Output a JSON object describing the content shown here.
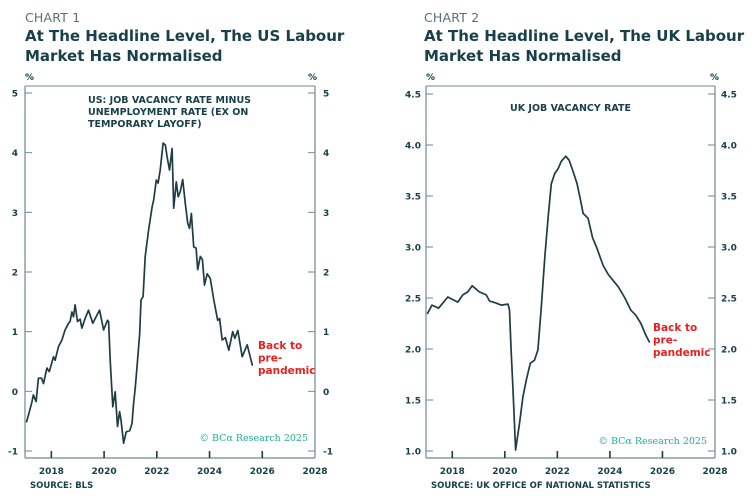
{
  "chart_data": [
    {
      "type": "line",
      "kicker": "CHART 1",
      "title_lines": [
        "At The Headline Level, The US Labour",
        "Market Has Normalised"
      ],
      "series_title_lines": [
        "US: JOB VACANCY RATE MINUS",
        "UNEMPLOYMENT RATE (EX ON",
        "TEMPORARY LAYOFF)"
      ],
      "ylabel": "%",
      "ylabel_right": "%",
      "ylim": [
        -1,
        5
      ],
      "yticks": [
        -1,
        0,
        1,
        2,
        3,
        4,
        5
      ],
      "ytick_labels": [
        "-1",
        "0",
        "1",
        "2",
        "3",
        "4",
        "5"
      ],
      "xlim": [
        2017,
        2028
      ],
      "xticks": [
        2018,
        2020,
        2022,
        2024,
        2026,
        2028
      ],
      "xtick_labels": [
        "2018",
        "2020",
        "2022",
        "2024",
        "2026",
        "2028"
      ],
      "grid": false,
      "annotation_lines": [
        "Back to",
        "pre-",
        "pandemic"
      ],
      "copyright": "© BCα Research 2025",
      "source": "SOURCE: BLS",
      "line_color": "#1e3c42",
      "annotation_color": "#e8201f",
      "series": [
        {
          "name": "US: Job vacancy rate minus unemployment rate (ex on temporary layoff)",
          "x": [
            2017.06,
            2017.25,
            2017.32,
            2017.42,
            2017.51,
            2017.63,
            2017.7,
            2017.83,
            2017.92,
            2018.08,
            2018.14,
            2018.27,
            2018.4,
            2018.52,
            2018.65,
            2018.71,
            2018.78,
            2018.84,
            2018.9,
            2018.99,
            2019.09,
            2019.16,
            2019.28,
            2019.41,
            2019.57,
            2019.73,
            2019.83,
            2019.98,
            2020.13,
            2020.17,
            2020.23,
            2020.33,
            2020.42,
            2020.51,
            2020.59,
            2020.64,
            2020.74,
            2020.84,
            2020.97,
            2021.06,
            2021.12,
            2021.18,
            2021.25,
            2021.35,
            2021.4,
            2021.48,
            2021.56,
            2021.69,
            2021.82,
            2021.88,
            2021.98,
            2022.05,
            2022.13,
            2022.24,
            2022.32,
            2022.39,
            2022.48,
            2022.58,
            2022.64,
            2022.74,
            2022.81,
            2022.89,
            2022.98,
            2023.08,
            2023.17,
            2023.24,
            2023.31,
            2023.4,
            2023.49,
            2023.55,
            2023.65,
            2023.73,
            2023.81,
            2023.91,
            2024.03,
            2024.16,
            2024.31,
            2024.38,
            2024.48,
            2024.6,
            2024.73,
            2024.88,
            2024.96,
            2025.07,
            2025.24,
            2025.43,
            2025.62
          ],
          "values": [
            -0.51,
            -0.2,
            -0.06,
            -0.17,
            0.22,
            0.22,
            0.13,
            0.39,
            0.33,
            0.58,
            0.52,
            0.75,
            0.86,
            1.03,
            1.14,
            1.17,
            1.33,
            1.25,
            1.45,
            1.17,
            1.21,
            1.06,
            1.22,
            1.36,
            1.14,
            1.28,
            1.36,
            1.03,
            1.19,
            1.17,
            0.52,
            -0.26,
            -0.01,
            -0.59,
            -0.34,
            -0.48,
            -0.87,
            -0.68,
            -0.66,
            -0.54,
            -0.2,
            0.05,
            0.41,
            0.97,
            1.53,
            1.59,
            2.26,
            2.7,
            3.09,
            3.21,
            3.54,
            3.49,
            3.71,
            4.16,
            4.13,
            3.93,
            3.71,
            4.07,
            3.07,
            3.51,
            3.26,
            3.35,
            3.55,
            3.15,
            2.82,
            2.73,
            2.98,
            2.42,
            2.4,
            2.04,
            2.26,
            2.21,
            1.78,
            1.97,
            1.89,
            1.53,
            1.19,
            1.22,
            0.86,
            0.9,
            0.69,
            1.0,
            0.89,
            1.02,
            0.58,
            0.78,
            0.44
          ]
        }
      ]
    },
    {
      "type": "line",
      "kicker": "CHART 2",
      "title_lines": [
        "At The Headline Level, The UK Labour",
        "Market Has Normalised"
      ],
      "series_title_lines": [
        "UK JOB VACANCY RATE"
      ],
      "ylabel": "%",
      "ylabel_right": "%",
      "ylim": [
        1.0,
        4.5
      ],
      "yticks": [
        1.0,
        1.5,
        2.0,
        2.5,
        3.0,
        3.5,
        4.0,
        4.5
      ],
      "ytick_labels": [
        "1.0",
        "1.5",
        "2.0",
        "2.5",
        "3.0",
        "3.5",
        "4.0",
        "4.5"
      ],
      "xlim": [
        2017,
        2028
      ],
      "xticks": [
        2018,
        2020,
        2022,
        2024,
        2026,
        2028
      ],
      "xtick_labels": [
        "2018",
        "2020",
        "2022",
        "2024",
        "2026",
        "2028"
      ],
      "grid": false,
      "annotation_lines": [
        "Back to",
        "pre-",
        "pandemic"
      ],
      "copyright": "© BCα Research 2025",
      "source": "SOURCE: UK OFFICE OF NATIONAL STATISTICS",
      "line_color": "#1e3c42",
      "annotation_color": "#e8201f",
      "series": [
        {
          "name": "UK job vacancy rate",
          "x": [
            2017.06,
            2017.23,
            2017.48,
            2017.83,
            2018.21,
            2018.4,
            2018.59,
            2018.76,
            2019.03,
            2019.29,
            2019.42,
            2019.67,
            2019.86,
            2020.12,
            2020.18,
            2020.24,
            2020.31,
            2020.41,
            2020.56,
            2020.69,
            2020.82,
            2020.97,
            2021.13,
            2021.26,
            2021.39,
            2021.52,
            2021.65,
            2021.77,
            2021.9,
            2022.03,
            2022.15,
            2022.32,
            2022.45,
            2022.6,
            2022.75,
            2022.88,
            2022.98,
            2023.17,
            2023.34,
            2023.49,
            2023.74,
            2023.94,
            2024.13,
            2024.32,
            2024.57,
            2024.8,
            2024.99,
            2025.18,
            2025.36,
            2025.5
          ],
          "values": [
            2.35,
            2.43,
            2.4,
            2.51,
            2.46,
            2.53,
            2.56,
            2.62,
            2.56,
            2.53,
            2.47,
            2.45,
            2.43,
            2.44,
            2.38,
            1.99,
            1.6,
            1.01,
            1.27,
            1.53,
            1.7,
            1.86,
            1.89,
            1.99,
            2.41,
            2.9,
            3.3,
            3.62,
            3.72,
            3.77,
            3.84,
            3.89,
            3.85,
            3.74,
            3.62,
            3.46,
            3.33,
            3.28,
            3.09,
            3.0,
            2.82,
            2.73,
            2.67,
            2.61,
            2.5,
            2.38,
            2.33,
            2.25,
            2.14,
            2.07
          ]
        }
      ]
    }
  ]
}
